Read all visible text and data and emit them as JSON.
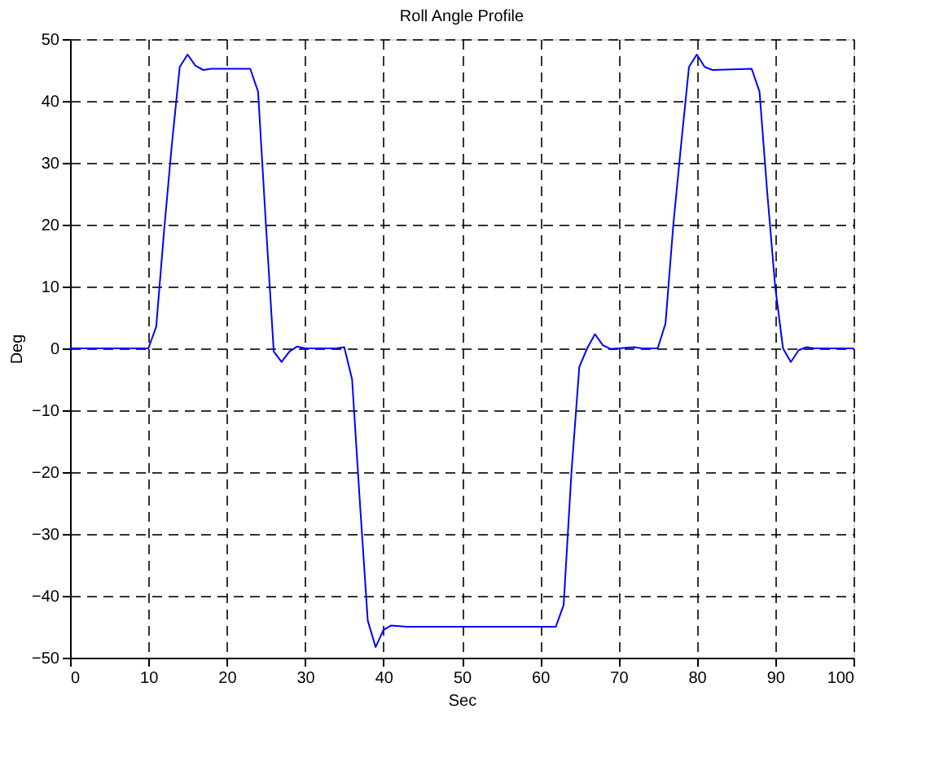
{
  "chart_data": {
    "type": "line",
    "title": "Roll Angle Profile",
    "xlabel": "Sec",
    "ylabel": "Deg",
    "x": [
      0,
      10,
      11,
      12,
      13,
      14,
      15,
      16,
      17,
      18,
      23,
      24,
      25,
      26,
      27,
      28,
      29,
      30,
      34,
      35,
      36,
      37,
      38,
      39,
      40,
      41,
      43,
      62,
      63,
      64,
      65,
      66,
      67,
      68,
      69,
      70,
      72,
      73,
      75,
      76,
      77,
      78,
      79,
      80,
      81,
      82,
      87,
      88,
      89,
      90,
      91,
      92,
      93,
      94,
      95,
      100
    ],
    "series": [
      {
        "color": "#0000ff",
        "values": [
          0,
          0,
          3.5,
          19,
          33,
          45.5,
          47.5,
          45.7,
          45,
          45.2,
          45.2,
          41.5,
          20,
          -0.5,
          -2.2,
          -0.5,
          0.3,
          0,
          0,
          0.2,
          -5,
          -25,
          -44,
          -48.3,
          -45.5,
          -44.8,
          -45,
          -45,
          -41.5,
          -20,
          -3,
          0,
          2.3,
          0.5,
          -0.1,
          0,
          0.2,
          0,
          0,
          4,
          20,
          33,
          45.5,
          47.5,
          45.5,
          45,
          45.2,
          41.5,
          25,
          10,
          0,
          -2.2,
          -0.3,
          0.2,
          0,
          0
        ]
      }
    ],
    "xlim": [
      0,
      100
    ],
    "ylim": [
      -50,
      50
    ],
    "xticks": [
      0,
      10,
      20,
      30,
      40,
      50,
      60,
      70,
      80,
      90,
      100
    ],
    "yticks": [
      -50,
      -40,
      -30,
      -20,
      -10,
      0,
      10,
      20,
      30,
      40,
      50
    ],
    "grid": true,
    "marker": "none",
    "line_style": "solid"
  }
}
